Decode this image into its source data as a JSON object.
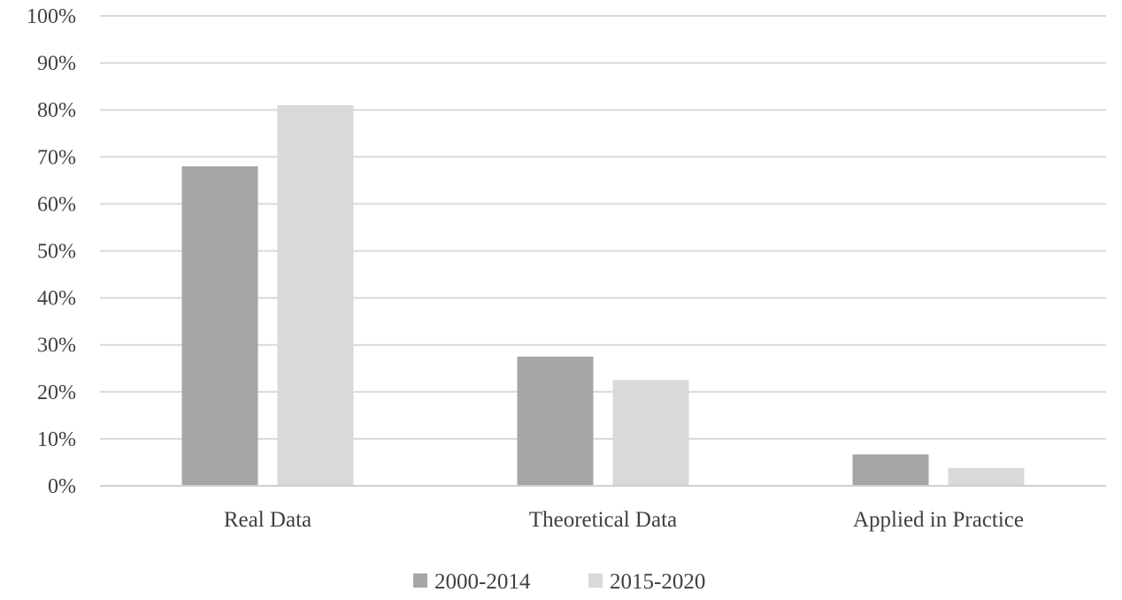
{
  "chart_data": {
    "type": "bar",
    "title": "",
    "xlabel": "",
    "ylabel": "",
    "categories": [
      "Real Data",
      "Theoretical Data",
      "Applied in Practice"
    ],
    "series": [
      {
        "name": "2000-2014",
        "values": [
          0.68,
          0.275,
          0.067
        ],
        "color": "#a6a6a6"
      },
      {
        "name": "2015-2020",
        "values": [
          0.81,
          0.225,
          0.038
        ],
        "color": "#d9d9d9"
      }
    ],
    "ylim": [
      0,
      1
    ],
    "yticks": [
      0,
      0.1,
      0.2,
      0.3,
      0.4,
      0.5,
      0.6,
      0.7,
      0.8,
      0.9,
      1.0
    ],
    "ytick_labels": [
      "0%",
      "10%",
      "20%",
      "30%",
      "40%",
      "50%",
      "60%",
      "70%",
      "80%",
      "90%",
      "100%"
    ],
    "grid": true,
    "legend_position": "bottom"
  }
}
